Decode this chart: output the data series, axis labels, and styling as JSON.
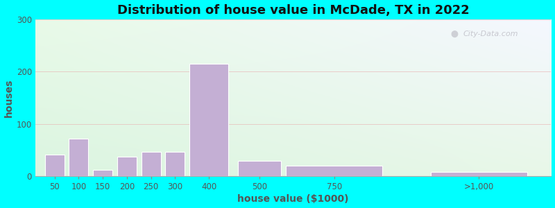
{
  "title": "Distribution of house value in McDade, TX in 2022",
  "xlabel": "house value ($1000)",
  "ylabel": "houses",
  "bar_color": "#c4afd4",
  "background_outer": "#00ffff",
  "ylim": [
    0,
    300
  ],
  "yticks": [
    0,
    100,
    200,
    300
  ],
  "bar_lefts": [
    50,
    100,
    150,
    200,
    250,
    300,
    350,
    450,
    550,
    850
  ],
  "bar_heights": [
    42,
    72,
    12,
    37,
    47,
    47,
    215,
    30,
    20,
    8
  ],
  "bar_widths": [
    40,
    40,
    40,
    40,
    40,
    40,
    80,
    90,
    200,
    200
  ],
  "xtick_labels": [
    "50",
    "100",
    "150",
    "200",
    "250",
    "300",
    "400",
    "500",
    "750",
    ">1,000"
  ],
  "xtick_positions": [
    70,
    120,
    170,
    220,
    270,
    320,
    390,
    495,
    650,
    950
  ],
  "xlim": [
    30,
    1100
  ],
  "watermark_text": "City-Data.com",
  "title_fontsize": 13,
  "axis_label_fontsize": 10,
  "tick_fontsize": 8.5,
  "grid_color": "#e8b0b0",
  "grid_alpha": 0.6
}
